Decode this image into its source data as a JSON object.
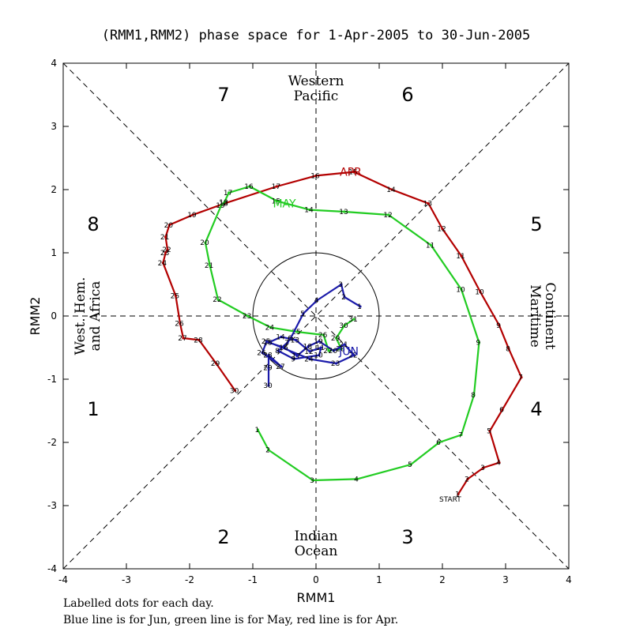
{
  "chart_data": {
    "type": "line",
    "title": "(RMM1,RMM2) phase space for  1-Apr-2005 to 30-Jun-2005",
    "xlabel": "RMM1",
    "ylabel": "RMM2",
    "xlim": [
      -4,
      4
    ],
    "ylim": [
      -4,
      4
    ],
    "xticks": [
      "-4",
      "-3",
      "-2",
      "-1",
      "0",
      "1",
      "2",
      "3",
      "4"
    ],
    "yticks": [
      "-4",
      "-3",
      "-2",
      "-1",
      "0",
      "1",
      "2",
      "3",
      "4"
    ],
    "grid": false,
    "unit_circle_radius": 1,
    "phases": [
      "1",
      "2",
      "3",
      "4",
      "5",
      "6",
      "7",
      "8"
    ],
    "regions": {
      "top": [
        "Western",
        "Pacific"
      ],
      "bottom": [
        "Indian",
        "Ocean"
      ],
      "left": [
        "West. Hem.",
        "and Africa"
      ],
      "right": [
        "Maritime",
        "Continent"
      ]
    },
    "start_label": "START",
    "series": [
      {
        "name": "APR",
        "color": "#b30000",
        "points": [
          {
            "d": "1",
            "x": 2.25,
            "y": -2.82
          },
          {
            "d": "2",
            "x": 2.4,
            "y": -2.58
          },
          {
            "d": "3",
            "x": 2.65,
            "y": -2.4
          },
          {
            "d": "4",
            "x": 2.9,
            "y": -2.32
          },
          {
            "d": "5",
            "x": 2.75,
            "y": -1.82
          },
          {
            "d": "6",
            "x": 2.95,
            "y": -1.48
          },
          {
            "d": "7",
            "x": 3.25,
            "y": -0.97
          },
          {
            "d": "8",
            "x": 3.05,
            "y": -0.52
          },
          {
            "d": "9",
            "x": 2.9,
            "y": -0.15
          },
          {
            "d": "10",
            "x": 2.6,
            "y": 0.38
          },
          {
            "d": "11",
            "x": 2.3,
            "y": 0.95
          },
          {
            "d": "12",
            "x": 2.0,
            "y": 1.38
          },
          {
            "d": "13",
            "x": 1.78,
            "y": 1.78
          },
          {
            "d": "14",
            "x": 1.2,
            "y": 2.0
          },
          {
            "d": "15",
            "x": 0.6,
            "y": 2.28
          },
          {
            "d": "16",
            "x": 0.0,
            "y": 2.22
          },
          {
            "d": "17",
            "x": -0.62,
            "y": 2.05
          },
          {
            "d": "18",
            "x": -1.45,
            "y": 1.78
          },
          {
            "d": "19",
            "x": -1.95,
            "y": 1.6
          },
          {
            "d": "20",
            "x": -2.32,
            "y": 1.44
          },
          {
            "d": "21",
            "x": -2.38,
            "y": 1.25
          },
          {
            "d": "22",
            "x": -2.35,
            "y": 1.05
          },
          {
            "d": "23",
            "x": -2.38,
            "y": 1.0
          },
          {
            "d": "24",
            "x": -2.42,
            "y": 0.84
          },
          {
            "d": "25",
            "x": -2.22,
            "y": 0.32
          },
          {
            "d": "26",
            "x": -2.15,
            "y": -0.12
          },
          {
            "d": "27",
            "x": -2.1,
            "y": -0.35
          },
          {
            "d": "28",
            "x": -1.85,
            "y": -0.38
          },
          {
            "d": "29",
            "x": -1.58,
            "y": -0.75
          },
          {
            "d": "30",
            "x": -1.28,
            "y": -1.18
          }
        ]
      },
      {
        "name": "MAY",
        "color": "#22cc22",
        "points": [
          {
            "d": "1",
            "x": -0.92,
            "y": -1.8
          },
          {
            "d": "2",
            "x": -0.75,
            "y": -2.12
          },
          {
            "d": "3",
            "x": -0.05,
            "y": -2.6
          },
          {
            "d": "4",
            "x": 0.65,
            "y": -2.58
          },
          {
            "d": "5",
            "x": 1.5,
            "y": -2.35
          },
          {
            "d": "6",
            "x": 1.95,
            "y": -2.0
          },
          {
            "d": "7",
            "x": 2.3,
            "y": -1.88
          },
          {
            "d": "8",
            "x": 2.5,
            "y": -1.25
          },
          {
            "d": "9",
            "x": 2.58,
            "y": -0.42
          },
          {
            "d": "10",
            "x": 2.3,
            "y": 0.42
          },
          {
            "d": "11",
            "x": 1.82,
            "y": 1.12
          },
          {
            "d": "12",
            "x": 1.15,
            "y": 1.6
          },
          {
            "d": "13",
            "x": 0.45,
            "y": 1.65
          },
          {
            "d": "14",
            "x": -0.1,
            "y": 1.68
          },
          {
            "d": "15",
            "x": -0.62,
            "y": 1.82
          },
          {
            "d": "16",
            "x": -1.05,
            "y": 2.05
          },
          {
            "d": "17",
            "x": -1.38,
            "y": 1.95
          },
          {
            "d": "18",
            "x": -1.45,
            "y": 1.8
          },
          {
            "d": "19",
            "x": -1.5,
            "y": 1.75
          },
          {
            "d": "20",
            "x": -1.75,
            "y": 1.16
          },
          {
            "d": "21",
            "x": -1.68,
            "y": 0.8
          },
          {
            "d": "22",
            "x": -1.55,
            "y": 0.26
          },
          {
            "d": "23",
            "x": -1.08,
            "y": 0.0
          },
          {
            "d": "24",
            "x": -0.72,
            "y": -0.18
          },
          {
            "d": "25",
            "x": -0.3,
            "y": -0.25
          },
          {
            "d": "26",
            "x": 0.12,
            "y": -0.3
          },
          {
            "d": "27",
            "x": 0.2,
            "y": -0.55
          },
          {
            "d": "28",
            "x": 0.4,
            "y": -0.52
          },
          {
            "d": "29",
            "x": 0.32,
            "y": -0.35
          },
          {
            "d": "30",
            "x": 0.45,
            "y": -0.15
          },
          {
            "d": "31",
            "x": 0.6,
            "y": -0.05
          }
        ]
      },
      {
        "name": "JUN",
        "color": "#1a1aaa",
        "points": [
          {
            "d": "1",
            "x": 0.7,
            "y": 0.15
          },
          {
            "d": "2",
            "x": 0.45,
            "y": 0.3
          },
          {
            "d": "3",
            "x": 0.4,
            "y": 0.5
          },
          {
            "d": "4",
            "x": 0.02,
            "y": 0.25
          },
          {
            "d": "5",
            "x": -0.2,
            "y": 0.04
          },
          {
            "d": "6",
            "x": -0.4,
            "y": -0.35
          },
          {
            "d": "7",
            "x": -0.45,
            "y": -0.42
          },
          {
            "d": "8",
            "x": -0.6,
            "y": -0.55
          },
          {
            "d": "9",
            "x": -0.35,
            "y": -0.68
          },
          {
            "d": "10",
            "x": 0.05,
            "y": -0.62
          },
          {
            "d": "11",
            "x": 0.08,
            "y": -0.5
          },
          {
            "d": "12",
            "x": -0.1,
            "y": -0.56
          },
          {
            "d": "13",
            "x": -0.32,
            "y": -0.38
          },
          {
            "d": "14",
            "x": -0.55,
            "y": -0.33
          },
          {
            "d": "15",
            "x": -0.75,
            "y": -0.42
          },
          {
            "d": "16",
            "x": -0.5,
            "y": -0.5
          },
          {
            "d": "17",
            "x": -0.3,
            "y": -0.63
          },
          {
            "d": "18",
            "x": -0.12,
            "y": -0.48
          },
          {
            "d": "19",
            "x": 0.05,
            "y": -0.4
          },
          {
            "d": "20",
            "x": 0.28,
            "y": -0.55
          },
          {
            "d": "21",
            "x": 0.45,
            "y": -0.45
          },
          {
            "d": "22",
            "x": 0.6,
            "y": -0.62
          },
          {
            "d": "23",
            "x": 0.32,
            "y": -0.75
          },
          {
            "d": "24",
            "x": -0.1,
            "y": -0.68
          },
          {
            "d": "25",
            "x": -0.78,
            "y": -0.4
          },
          {
            "d": "26",
            "x": -0.85,
            "y": -0.58
          },
          {
            "d": "27",
            "x": -0.55,
            "y": -0.8
          },
          {
            "d": "28",
            "x": -0.75,
            "y": -0.62
          },
          {
            "d": "29",
            "x": -0.75,
            "y": -0.82
          },
          {
            "d": "30",
            "x": -0.75,
            "y": -1.1
          }
        ]
      }
    ]
  },
  "footnote": {
    "line1": "Labelled dots for each day.",
    "line2": "Blue line is for Jun, green line is for May, red line is for Apr."
  }
}
